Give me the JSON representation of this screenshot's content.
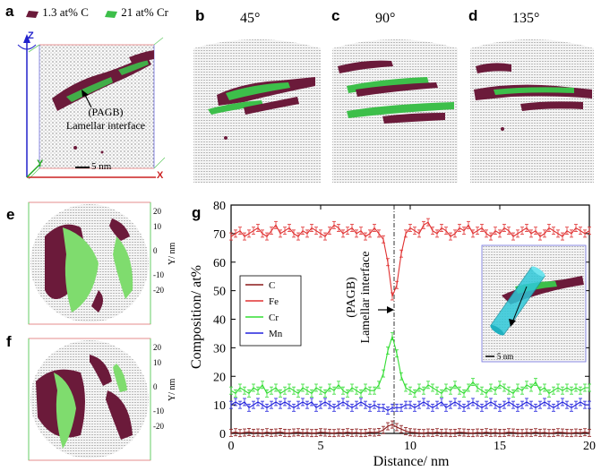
{
  "panel_a": {
    "label": "a",
    "legend_c": "1.3 at% C",
    "legend_cr": "21 at% Cr",
    "axis_z": "Z",
    "axis_y": "Y",
    "axis_x": "X",
    "annotation_line1": "(PAGB)",
    "annotation_line2": "Lamellar interface",
    "scale_bar": "5 nm"
  },
  "panel_b": {
    "label": "b",
    "angle": "45°"
  },
  "panel_c": {
    "label": "c",
    "angle": "90°"
  },
  "panel_d": {
    "label": "d",
    "angle": "135°"
  },
  "panel_e": {
    "label": "e",
    "ticks": [
      "20",
      "10",
      "0",
      "-10",
      "-20"
    ],
    "axis_label": "Y/ nm"
  },
  "panel_f": {
    "label": "f",
    "ticks": [
      "20",
      "10",
      "0",
      "-10",
      "-20"
    ],
    "axis_label": "Y/ nm"
  },
  "panel_g": {
    "label": "g",
    "interface_line1": "(PAGB)",
    "interface_line2": "Lamellar interface",
    "inset_scale": "5 nm"
  },
  "colors": {
    "carbon": "#6b1a3a",
    "chromium": "#7fdc6e",
    "fe_line": "#e03030",
    "cr_line": "#33dd33",
    "mn_line": "#2222dd",
    "c_line": "#8b1a1a"
  },
  "chart_data": {
    "type": "line",
    "xlabel": "Distance/ nm",
    "ylabel": "Composition/ at%",
    "xlim": [
      0,
      20
    ],
    "ylim": [
      0,
      80
    ],
    "xticks": [
      0,
      5,
      10,
      15,
      20
    ],
    "yticks": [
      0,
      10,
      20,
      30,
      40,
      50,
      60,
      70,
      80
    ],
    "legend_position": "center-left",
    "x": [
      0,
      0.25,
      0.5,
      0.75,
      1,
      1.25,
      1.5,
      1.75,
      2,
      2.25,
      2.5,
      2.75,
      3,
      3.25,
      3.5,
      3.75,
      4,
      4.25,
      4.5,
      4.75,
      5,
      5.25,
      5.5,
      5.75,
      6,
      6.25,
      6.5,
      6.75,
      7,
      7.25,
      7.5,
      7.75,
      8,
      8.25,
      8.5,
      8.75,
      9,
      9.25,
      9.5,
      9.75,
      10,
      10.25,
      10.5,
      10.75,
      11,
      11.25,
      11.5,
      11.75,
      12,
      12.25,
      12.5,
      12.75,
      13,
      13.25,
      13.5,
      13.75,
      14,
      14.25,
      14.5,
      14.75,
      15,
      15.25,
      15.5,
      15.75,
      16,
      16.25,
      16.5,
      16.75,
      17,
      17.25,
      17.5,
      17.75,
      18,
      18.25,
      18.5,
      18.75,
      19,
      19.25,
      19.5,
      19.75,
      20
    ],
    "series": [
      {
        "name": "C",
        "color": "#8b1a1a",
        "values": [
          0.2,
          0.4,
          0.1,
          0.3,
          0.5,
          0.2,
          0.3,
          0.1,
          0.4,
          0.2,
          0.3,
          0.5,
          0.2,
          0.1,
          0.3,
          0.4,
          0.2,
          0.3,
          0.1,
          0.2,
          0.4,
          0.3,
          0.2,
          0.1,
          0.3,
          0.2,
          0.4,
          0.2,
          0.3,
          0.1,
          0.2,
          0.4,
          0.3,
          0.5,
          1.2,
          2.5,
          3.1,
          2.2,
          1.5,
          0.8,
          0.4,
          0.3,
          0.2,
          0.1,
          0.3,
          0.2,
          0.4,
          0.2,
          0.3,
          0.1,
          0.2,
          0.4,
          0.3,
          0.2,
          0.1,
          0.3,
          0.2,
          0.4,
          0.2,
          0.3,
          0.1,
          0.2,
          0.4,
          0.3,
          0.2,
          0.1,
          0.3,
          0.2,
          0.4,
          0.2,
          0.3,
          0.1,
          0.2,
          0.4,
          0.3,
          0.2,
          0.1,
          0.3,
          0.2,
          0.4,
          0.2
        ]
      },
      {
        "name": "Fe",
        "color": "#e03030",
        "values": [
          69,
          70,
          71,
          69,
          70,
          71,
          72,
          70,
          69,
          71,
          73,
          70,
          71,
          72,
          70,
          69,
          71,
          70,
          72,
          71,
          70,
          69,
          71,
          73,
          72,
          70,
          71,
          72,
          70,
          71,
          69,
          70,
          72,
          70,
          68,
          60,
          48,
          52,
          63,
          70,
          72,
          71,
          70,
          73,
          74,
          71,
          70,
          72,
          71,
          69,
          70,
          72,
          71,
          73,
          70,
          71,
          72,
          70,
          69,
          71,
          70,
          72,
          71,
          69,
          70,
          71,
          72,
          70,
          71,
          69,
          70,
          72,
          71,
          70,
          69,
          71,
          70,
          72,
          71,
          70,
          71
        ]
      },
      {
        "name": "Cr",
        "color": "#33dd33",
        "values": [
          15,
          14,
          16,
          15,
          14,
          16,
          15,
          17,
          14,
          15,
          16,
          14,
          15,
          16,
          15,
          14,
          16,
          15,
          14,
          16,
          15,
          14,
          16,
          15,
          17,
          15,
          14,
          16,
          15,
          14,
          16,
          15,
          15,
          17,
          21,
          29,
          34,
          28,
          20,
          16,
          15,
          14,
          16,
          15,
          17,
          16,
          15,
          14,
          16,
          15,
          17,
          15,
          14,
          16,
          18,
          16,
          15,
          14,
          16,
          15,
          17,
          16,
          15,
          14,
          16,
          15,
          17,
          16,
          18,
          15,
          16,
          14,
          15,
          16,
          15,
          16,
          15,
          16,
          15,
          16,
          16
        ]
      },
      {
        "name": "Mn",
        "color": "#2222dd",
        "values": [
          10,
          11,
          10,
          11,
          9,
          10,
          11,
          10,
          9,
          10,
          11,
          10,
          11,
          10,
          9,
          10,
          11,
          10,
          11,
          9,
          10,
          11,
          10,
          9,
          10,
          11,
          10,
          9,
          10,
          11,
          10,
          9,
          10,
          9,
          9,
          8,
          9,
          9,
          9,
          10,
          10,
          9,
          10,
          11,
          10,
          9,
          10,
          11,
          9,
          10,
          11,
          10,
          9,
          10,
          11,
          10,
          9,
          10,
          11,
          10,
          9,
          10,
          11,
          10,
          9,
          10,
          11,
          10,
          9,
          10,
          11,
          10,
          9,
          10,
          11,
          10,
          9,
          10,
          11,
          10,
          10
        ]
      }
    ]
  }
}
